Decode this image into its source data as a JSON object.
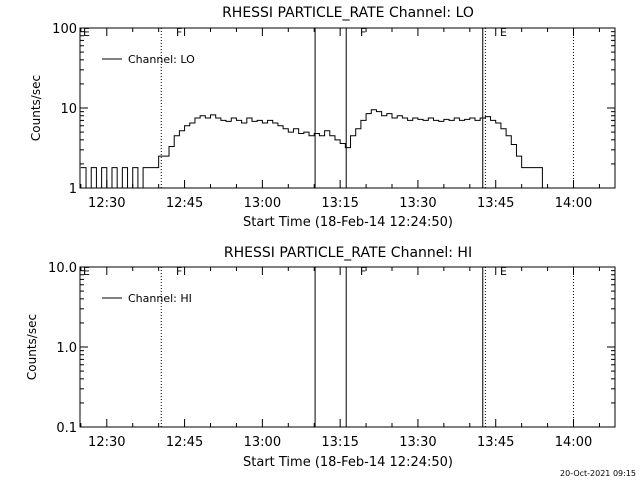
{
  "footer": {
    "timestamp": "20-Oct-2021 09:15"
  },
  "chart_data": [
    {
      "type": "line",
      "title": "RHESSI PARTICLE_RATE Channel: LO",
      "xlabel": "Start Time (18-Feb-14 12:24:50)",
      "ylabel": "Counts/sec",
      "yscale": "log",
      "ylim": [
        1,
        100
      ],
      "xlim": [
        "12:24:50",
        "14:08:00"
      ],
      "ytick_labels": [
        "1",
        "10",
        "100"
      ],
      "xtick_labels": [
        "12:30",
        "12:45",
        "13:00",
        "13:15",
        "13:30",
        "13:45",
        "14:00"
      ],
      "legend": {
        "label": "Channel: LO",
        "position": "top-left"
      },
      "flag_labels": [
        "E",
        "F",
        "F",
        "E"
      ],
      "event_markers": [
        {
          "time": "12:40:30",
          "style": "dotted",
          "label": "F"
        },
        {
          "time": "13:10:10",
          "style": "solid"
        },
        {
          "time": "13:16:10",
          "style": "solid",
          "label": "F"
        },
        {
          "time": "13:42:30",
          "style": "solid",
          "label": "E"
        },
        {
          "time": "13:43:00",
          "style": "dotted"
        },
        {
          "time": "14:00:00",
          "style": "dotted"
        }
      ],
      "series": [
        {
          "name": "Channel: LO",
          "times": [
            "12:25",
            "12:26",
            "12:27",
            "12:28",
            "12:29",
            "12:30",
            "12:31",
            "12:32",
            "12:33",
            "12:34",
            "12:35",
            "12:36",
            "12:37",
            "12:38",
            "12:39",
            "12:40",
            "12:41",
            "12:42",
            "12:43",
            "12:44",
            "12:45",
            "12:46",
            "12:47",
            "12:48",
            "12:49",
            "12:50",
            "12:51",
            "12:52",
            "12:53",
            "12:54",
            "12:55",
            "12:56",
            "12:57",
            "12:58",
            "12:59",
            "13:00",
            "13:01",
            "13:02",
            "13:03",
            "13:04",
            "13:05",
            "13:06",
            "13:07",
            "13:08",
            "13:09",
            "13:10",
            "13:11",
            "13:12",
            "13:13",
            "13:14",
            "13:15",
            "13:16",
            "13:17",
            "13:18",
            "13:19",
            "13:20",
            "13:21",
            "13:22",
            "13:23",
            "13:24",
            "13:25",
            "13:26",
            "13:27",
            "13:28",
            "13:29",
            "13:30",
            "13:31",
            "13:32",
            "13:33",
            "13:34",
            "13:35",
            "13:36",
            "13:37",
            "13:38",
            "13:39",
            "13:40",
            "13:41",
            "13:42",
            "13:43",
            "13:44",
            "13:45",
            "13:46",
            "13:47",
            "13:48",
            "13:49",
            "13:50",
            "13:51",
            "13:52",
            "13:53",
            "13:54",
            "13:55"
          ],
          "values": [
            1.8,
            1,
            1.8,
            1,
            1.8,
            1,
            1.8,
            1,
            1.8,
            1,
            1.8,
            1,
            1.8,
            1.8,
            1.8,
            2.5,
            2.5,
            3.3,
            4.5,
            5.2,
            6.0,
            6.5,
            7.5,
            8.0,
            7.5,
            8.2,
            7.5,
            7.0,
            6.8,
            7.5,
            7.0,
            6.5,
            7.5,
            6.8,
            7.0,
            6.5,
            7.0,
            6.5,
            6.0,
            5.5,
            5.0,
            5.5,
            4.8,
            5.0,
            4.5,
            4.8,
            4.5,
            5.2,
            4.5,
            4.0,
            3.6,
            3.2,
            4.5,
            5.5,
            7.0,
            8.5,
            9.5,
            9.0,
            8.0,
            8.5,
            7.5,
            8.0,
            7.5,
            7.0,
            7.5,
            7.2,
            7.0,
            7.5,
            7.0,
            6.8,
            7.2,
            7.0,
            7.5,
            7.0,
            7.2,
            7.5,
            7.0,
            7.5,
            7.8,
            7.0,
            6.5,
            5.5,
            4.5,
            3.5,
            2.5,
            1.8,
            1.8,
            1.8,
            1.8,
            1,
            1
          ]
        }
      ]
    },
    {
      "type": "line",
      "title": "RHESSI PARTICLE_RATE Channel: HI",
      "xlabel": "Start Time (18-Feb-14 12:24:50)",
      "ylabel": "Counts/sec",
      "yscale": "log",
      "ylim": [
        0.1,
        10
      ],
      "xlim": [
        "12:24:50",
        "14:08:00"
      ],
      "ytick_labels": [
        "0.1",
        "1.0",
        "10.0"
      ],
      "xtick_labels": [
        "12:30",
        "12:45",
        "13:00",
        "13:15",
        "13:30",
        "13:45",
        "14:00"
      ],
      "legend": {
        "label": "Channel: HI",
        "position": "top-left"
      },
      "flag_labels": [
        "E",
        "F",
        "F",
        "E"
      ],
      "event_markers": [
        {
          "time": "12:40:30",
          "style": "dotted",
          "label": "F"
        },
        {
          "time": "13:10:10",
          "style": "solid"
        },
        {
          "time": "13:16:10",
          "style": "solid",
          "label": "F"
        },
        {
          "time": "13:42:30",
          "style": "solid",
          "label": "E"
        },
        {
          "time": "13:43:00",
          "style": "dotted"
        },
        {
          "time": "14:00:00",
          "style": "dotted"
        }
      ],
      "series": [
        {
          "name": "Channel: HI",
          "times": [],
          "values": []
        }
      ]
    }
  ]
}
